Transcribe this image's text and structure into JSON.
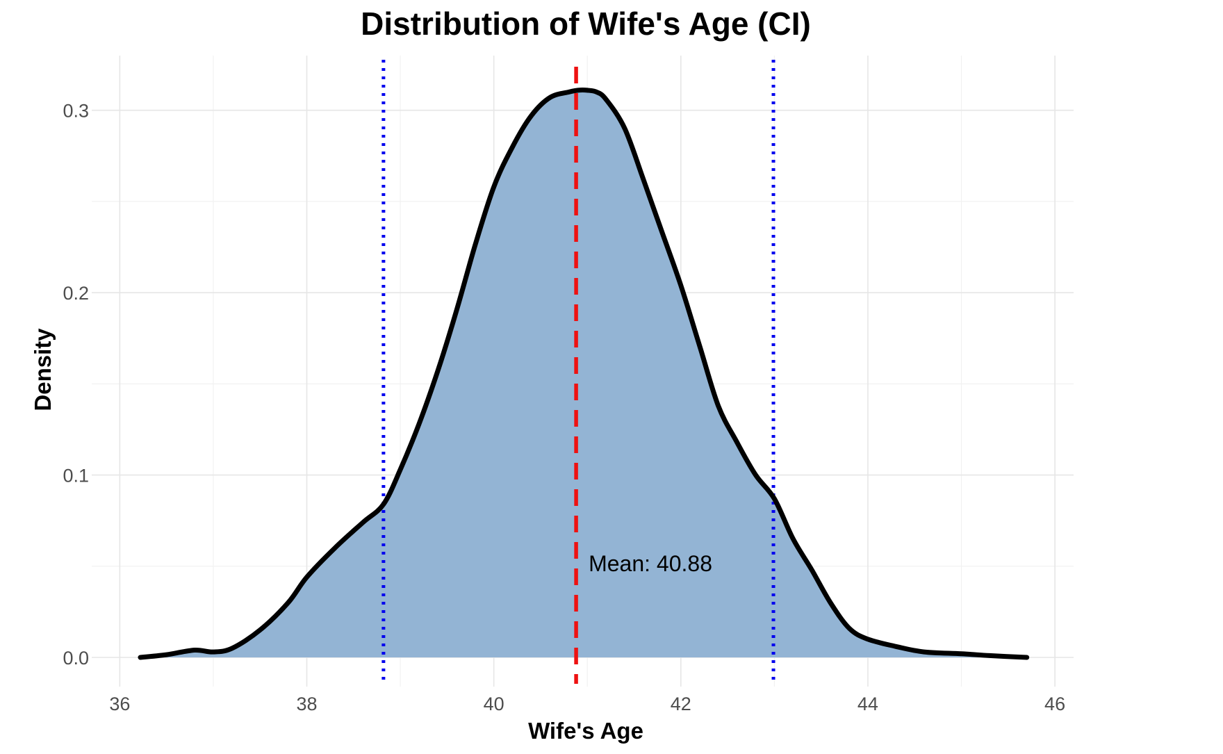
{
  "chart_data": {
    "type": "area",
    "title": "Distribution of Wife's Age (CI)",
    "xlabel": "Wife's Age",
    "ylabel": "Density",
    "xlim": [
      35.7,
      46.2
    ],
    "ylim": [
      -0.016,
      0.33
    ],
    "x_ticks": [
      36,
      38,
      40,
      42,
      44,
      46
    ],
    "x_tick_labels": [
      "36",
      "38",
      "40",
      "42",
      "44",
      "46"
    ],
    "y_ticks": [
      0.0,
      0.1,
      0.2,
      0.3
    ],
    "y_tick_labels": [
      "0.0",
      "0.1",
      "0.2",
      "0.3"
    ],
    "grid": true,
    "legend": "none",
    "density_curve": {
      "x": [
        36.22,
        36.5,
        36.8,
        37.0,
        37.2,
        37.5,
        37.8,
        38.0,
        38.3,
        38.6,
        38.82,
        39.0,
        39.2,
        39.4,
        39.6,
        39.8,
        40.0,
        40.2,
        40.4,
        40.6,
        40.8,
        40.9,
        41.0,
        41.1,
        41.2,
        41.4,
        41.6,
        41.8,
        42.0,
        42.2,
        42.4,
        42.6,
        42.8,
        43.0,
        43.2,
        43.4,
        43.6,
        43.8,
        44.0,
        44.3,
        44.6,
        45.0,
        45.3,
        45.7
      ],
      "y": [
        0.0,
        0.0015,
        0.004,
        0.003,
        0.005,
        0.015,
        0.03,
        0.044,
        0.06,
        0.074,
        0.084,
        0.103,
        0.128,
        0.157,
        0.19,
        0.226,
        0.258,
        0.28,
        0.297,
        0.307,
        0.31,
        0.311,
        0.311,
        0.31,
        0.306,
        0.29,
        0.262,
        0.233,
        0.204,
        0.171,
        0.138,
        0.118,
        0.1,
        0.087,
        0.065,
        0.048,
        0.03,
        0.016,
        0.01,
        0.006,
        0.003,
        0.002,
        0.001,
        0.0
      ],
      "fill_color": "#93b4d4",
      "line_color": "#000000"
    },
    "mean_line": {
      "x": 40.88,
      "color": "#ee1111",
      "style": "dashed",
      "label": "Mean: 40.88"
    },
    "ci_lines": {
      "x": [
        38.82,
        42.99
      ],
      "color": "#0000ee",
      "style": "dotted"
    }
  }
}
